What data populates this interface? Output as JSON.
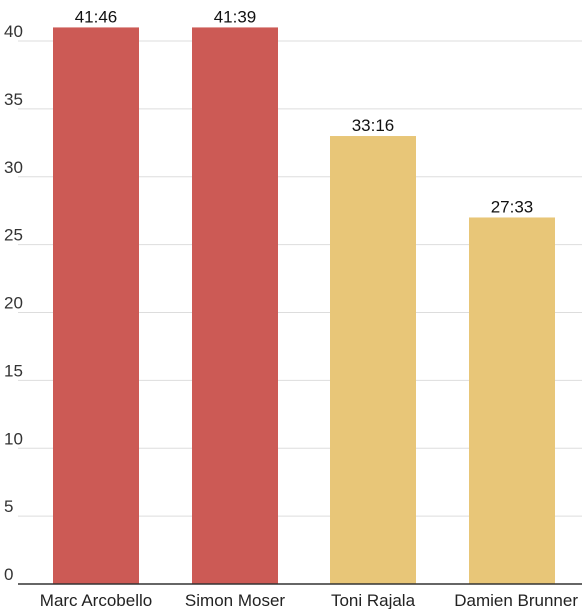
{
  "chart_data": {
    "type": "bar",
    "categories": [
      "Marc Arcobello",
      "Simon Moser",
      "Toni Rajala",
      "Damien Brunner"
    ],
    "values": [
      41,
      41,
      33,
      27
    ],
    "data_labels": [
      "41:46",
      "41:39",
      "33:16",
      "27:33"
    ],
    "bar_colors": [
      "#cc5a55",
      "#cc5a55",
      "#e8c678",
      "#e8c678"
    ],
    "ylim": [
      0,
      40
    ],
    "yticks": [
      0,
      5,
      10,
      15,
      20,
      25,
      30,
      35,
      40
    ],
    "grid": true,
    "title": "",
    "xlabel": "",
    "ylabel": ""
  }
}
